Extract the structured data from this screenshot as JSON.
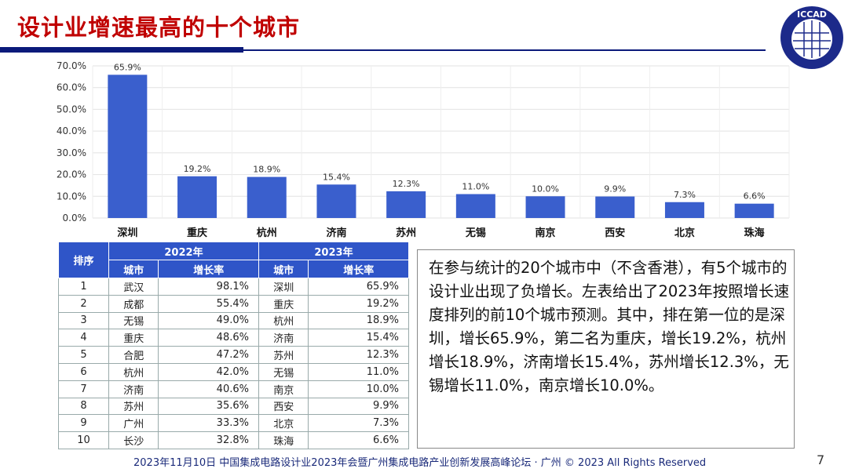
{
  "title": "设计业增速最高的十个城市",
  "logo_text": "ICCAD",
  "colors": {
    "title": "#c00000",
    "bar": "#3a5fcd",
    "header": "#2f55c8",
    "rule": "#0b1a7a"
  },
  "chart_data": {
    "type": "bar",
    "categories": [
      "深圳",
      "重庆",
      "杭州",
      "济南",
      "苏州",
      "无锡",
      "南京",
      "西安",
      "北京",
      "珠海"
    ],
    "values": [
      65.9,
      19.2,
      18.9,
      15.4,
      12.3,
      11.0,
      10.0,
      9.9,
      7.3,
      6.6
    ],
    "data_labels": [
      "65.9%",
      "19.2%",
      "18.9%",
      "15.4%",
      "12.3%",
      "11.0%",
      "10.0%",
      "9.9%",
      "7.3%",
      "6.6%"
    ],
    "ylim": [
      0,
      70
    ],
    "yticks": [
      "0.0%",
      "10.0%",
      "20.0%",
      "30.0%",
      "40.0%",
      "50.0%",
      "60.0%",
      "70.0%"
    ],
    "grid": true
  },
  "table": {
    "rank_header": "排序",
    "year1": "2022年",
    "year2": "2023年",
    "city_header": "城市",
    "rate_header": "增长率",
    "rows": [
      [
        "1",
        "武汉",
        "98.1%",
        "深圳",
        "65.9%"
      ],
      [
        "2",
        "成都",
        "55.4%",
        "重庆",
        "19.2%"
      ],
      [
        "3",
        "无锡",
        "49.0%",
        "杭州",
        "18.9%"
      ],
      [
        "4",
        "重庆",
        "48.6%",
        "济南",
        "15.4%"
      ],
      [
        "5",
        "合肥",
        "47.2%",
        "苏州",
        "12.3%"
      ],
      [
        "6",
        "杭州",
        "42.0%",
        "无锡",
        "11.0%"
      ],
      [
        "7",
        "济南",
        "40.6%",
        "南京",
        "10.0%"
      ],
      [
        "8",
        "苏州",
        "35.6%",
        "西安",
        "9.9%"
      ],
      [
        "9",
        "广州",
        "33.3%",
        "北京",
        "7.3%"
      ],
      [
        "10",
        "长沙",
        "32.8%",
        "珠海",
        "6.6%"
      ]
    ]
  },
  "note": "在参与统计的20个城市中（不含香港），有5个城市的设计业出现了负增长。左表给出了2023年按照增长速度排列的前10个城市预测。其中，排在第一位的是深圳，增长65.9%，第二名为重庆，增长19.2%，杭州增长18.9%，济南增长15.4%，苏州增长12.3%，无锡增长11.0%，南京增长10.0%。",
  "footer": "2023年11月10日 中国集成电路设计业2023年会暨广州集成电路产业创新发展高峰论坛 · 广州 © 2023 All Rights Reserved",
  "page_number": "7"
}
